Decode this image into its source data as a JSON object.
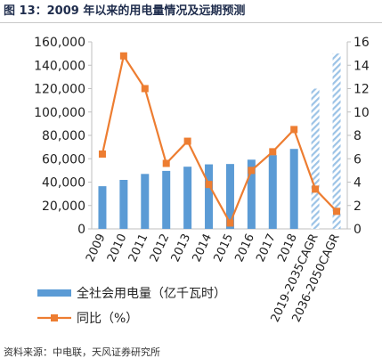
{
  "title": "图 13：2009 年以来的用电量情况及远期预测",
  "source": "资料来源：中电联，天风证券研究所",
  "colors": {
    "bar": "#5b9bd5",
    "line": "#ed7d31",
    "hatch": "#9cc3e6",
    "axis": "#bfbfbf",
    "title": "#1f2d4d"
  },
  "chart_data": {
    "type": "bar+line",
    "categories": [
      "2009",
      "2010",
      "2011",
      "2012",
      "2013",
      "2014",
      "2015",
      "2016",
      "2017",
      "2018",
      "2019-2035CAGR",
      "2036-2050CAGR"
    ],
    "series": [
      {
        "name": "全社会用电量（亿千瓦时）",
        "type": "bar",
        "axis": "left",
        "values": [
          36500,
          41900,
          47000,
          49600,
          53200,
          55200,
          55500,
          59200,
          63100,
          68400,
          120000,
          150000
        ],
        "hatched_from_index": 10
      },
      {
        "name": "同比（%）",
        "type": "line",
        "axis": "right",
        "values": [
          6.4,
          14.8,
          12.0,
          5.6,
          7.5,
          3.8,
          0.5,
          5.0,
          6.6,
          8.5,
          3.4,
          1.5
        ]
      }
    ],
    "y_left": {
      "ylim": [
        0,
        160000
      ],
      "ticks": [
        "0",
        "20,000",
        "40,000",
        "60,000",
        "80,000",
        "100,000",
        "120,000",
        "140,000",
        "160,000"
      ]
    },
    "y_right": {
      "ylim": [
        0,
        16
      ],
      "ticks": [
        "0",
        "2",
        "4",
        "6",
        "8",
        "10",
        "12",
        "14",
        "16"
      ]
    },
    "grid": false,
    "legend_position": "bottom-left"
  }
}
